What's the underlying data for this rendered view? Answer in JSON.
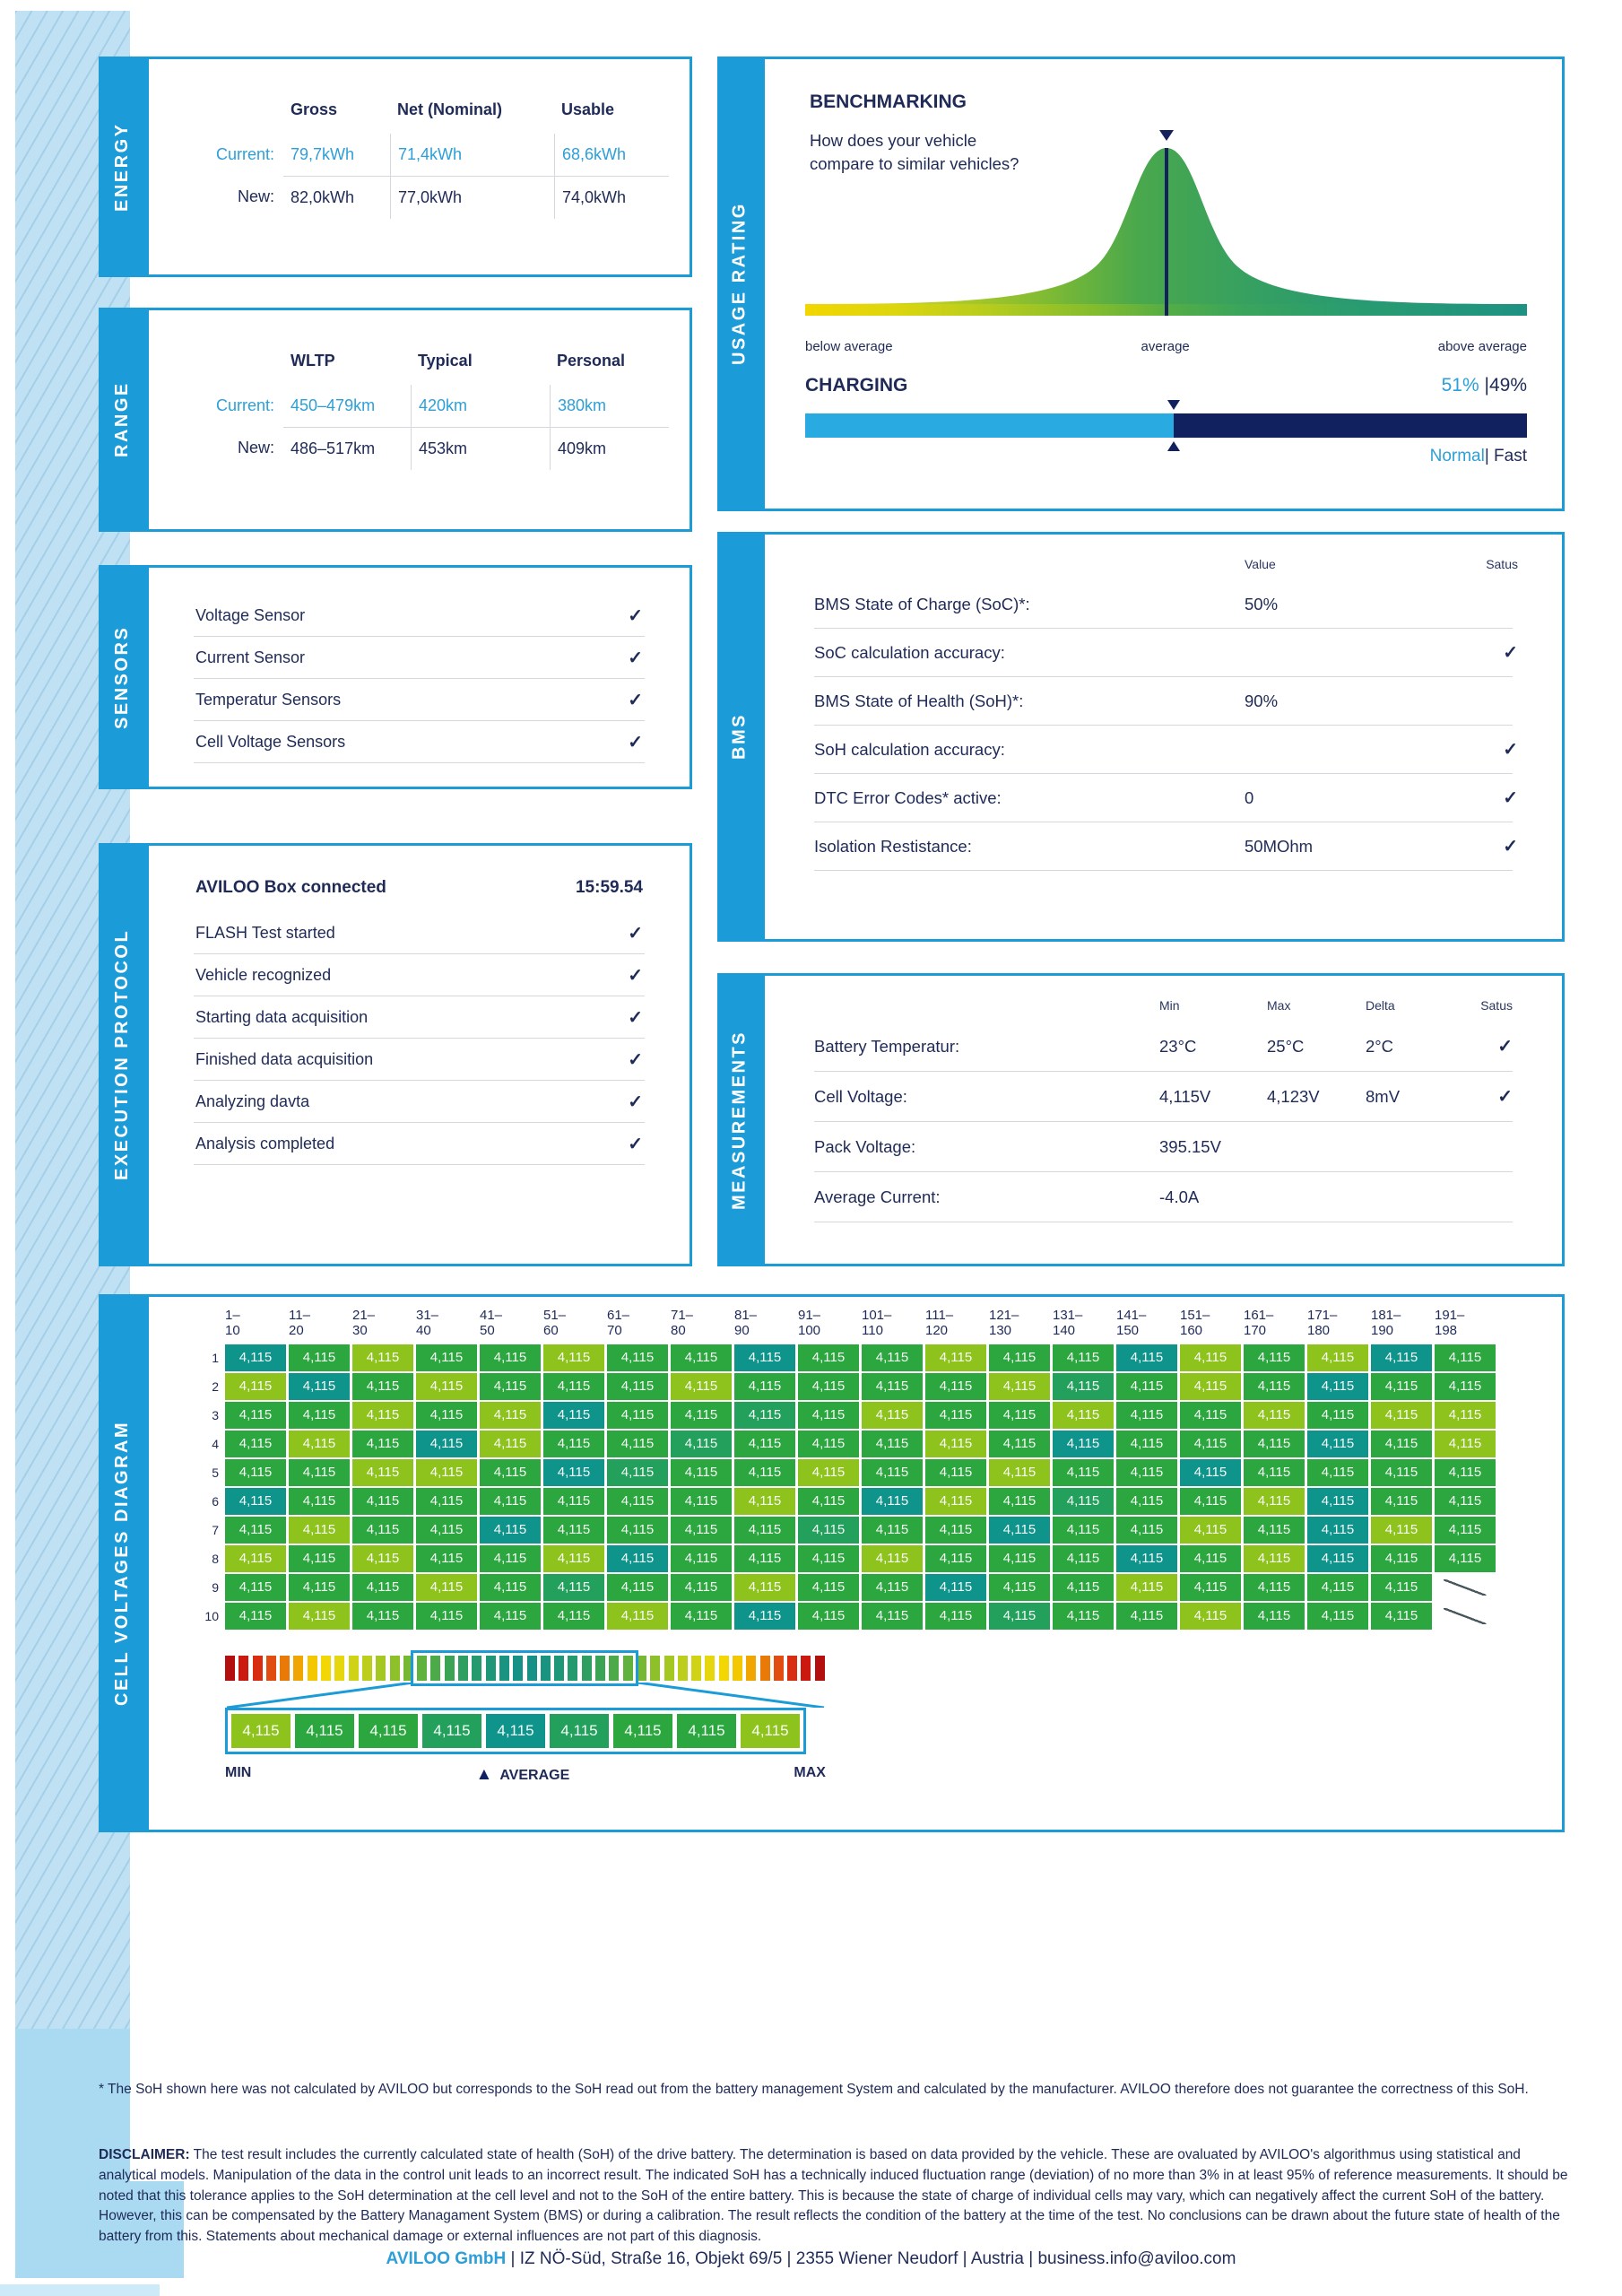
{
  "colors": {
    "accent": "#1b9bd8",
    "navy": "#1f2a57",
    "blue_text": "#2d9fd8",
    "bar_light": "#29abe2",
    "bar_dark": "#11205f",
    "t": "#0f948b",
    "s": "#23a15c",
    "g": "#2ca63f",
    "y": "#8ec31e"
  },
  "energy": {
    "tab": "ENERGY",
    "columns": [
      "Gross",
      "Net (Nominal)",
      "Usable"
    ],
    "rows": [
      {
        "label": "Current:",
        "values": [
          "79,7kWh",
          "71,4kWh",
          "68,6kWh"
        ],
        "accent": true
      },
      {
        "label": "New:",
        "values": [
          "82,0kWh",
          "77,0kWh",
          "74,0kWh"
        ],
        "accent": false
      }
    ]
  },
  "range": {
    "tab": "RANGE",
    "columns": [
      "WLTP",
      "Typical",
      "Personal"
    ],
    "rows": [
      {
        "label": "Current:",
        "values": [
          "450–479km",
          "420km",
          "380km"
        ],
        "accent": true
      },
      {
        "label": "New:",
        "values": [
          "486–517km",
          "453km",
          "409km"
        ],
        "accent": false
      }
    ]
  },
  "sensors": {
    "tab": "SENSORS",
    "items": [
      "Voltage Sensor",
      "Current Sensor",
      "Temperatur Sensors",
      "Cell Voltage Sensors"
    ]
  },
  "execution": {
    "tab": "EXECUTION PROTOCOL",
    "title": "AVILOO Box connected",
    "time": "15:59.54",
    "steps": [
      "FLASH Test started",
      "Vehicle recognized",
      "Starting data acquisition",
      "Finished data acquisition",
      "Analyzing davta",
      "Analysis completed"
    ]
  },
  "usage_rating": {
    "tab": "USAGE RATING",
    "benchmarking_title": "BENCHMARKING",
    "question": "How does your vehicle compare to similar vehicles?",
    "axis_labels": [
      "below average",
      "average",
      "above average"
    ],
    "charging": {
      "title": "CHARGING",
      "left_pct": "51%",
      "right_pct": "|49%",
      "split": 51,
      "normal": "Normal",
      "fast": "| Fast"
    }
  },
  "bms": {
    "tab": "BMS",
    "headers": [
      "Value",
      "Satus"
    ],
    "rows": [
      {
        "label": "BMS State of Charge (SoC)*:",
        "value": "50%",
        "check": false
      },
      {
        "label": "SoC calculation accuracy:",
        "value": "",
        "check": true
      },
      {
        "label": "BMS State of Health (SoH)*:",
        "value": "90%",
        "check": false
      },
      {
        "label": "SoH calculation accuracy:",
        "value": "",
        "check": true
      },
      {
        "label": "DTC Error Codes* active:",
        "value": "0",
        "check": true
      },
      {
        "label": "Isolation Restistance:",
        "value": "50MOhm",
        "check": true
      }
    ]
  },
  "measurements": {
    "tab": "MEASUREMENTS",
    "headers": [
      "Min",
      "Max",
      "Delta",
      "Satus"
    ],
    "rows": [
      {
        "label": "Battery Temperatur:",
        "values": [
          "23°C",
          "25°C",
          "2°C"
        ],
        "check": true
      },
      {
        "label": "Cell Voltage:",
        "values": [
          "4,115V",
          "4,123V",
          "8mV"
        ],
        "check": true
      },
      {
        "label": "Pack Voltage:",
        "values": [
          "395.15V",
          "",
          ""
        ],
        "check": false
      },
      {
        "label": "Average Current:",
        "values": [
          "-4.0A",
          "",
          ""
        ],
        "check": false
      }
    ]
  },
  "cell_voltages": {
    "tab": "CELL VOLTAGES DIAGRAM",
    "cell_value": "4,115",
    "columns": [
      "1–10",
      "11–20",
      "21–30",
      "31–40",
      "41–50",
      "51–60",
      "61–70",
      "71–80",
      "81–90",
      "91–100",
      "101–110",
      "111–120",
      "121–130",
      "131–140",
      "141–150",
      "151–160",
      "161–170",
      "171–180",
      "181–190",
      "191–198"
    ],
    "matrix": [
      "tgyggyggtggyggtygytg",
      "ytgygggyggggysgygtgg",
      "ggygytggsgyggyggygyy",
      "gygtyggsgggygtgggtgy",
      "ggyygtsggyggyggtgggg",
      "tgggggggygtygsggytgg",
      "gyggtggggsggtggygtyg",
      "ygyggytgggygggtgytgg",
      "gggygsggyggtggygggg/",
      "gyggggygtgggsggyggg/"
    ],
    "strip_half": [
      "#b30f0f",
      "#cc1910",
      "#d92d12",
      "#e14d10",
      "#ea7a08",
      "#f0a500",
      "#f4c800",
      "#f2d705",
      "#e5d60e",
      "#d0d215",
      "#bccd1b",
      "#a5c721",
      "#8ec02a",
      "#77b833",
      "#60b13d",
      "#4caa48",
      "#3ba454",
      "#2e9f61",
      "#259a6e",
      "#1e9678",
      "#1a9380",
      "#179185"
    ],
    "magnified_colors": "yggstsggy",
    "labels": {
      "min": "MIN",
      "average": "AVERAGE",
      "max": "MAX"
    }
  },
  "footnote": "* The SoH shown here was not calculated by AVILOO but corresponds to the SoH read out from the battery management System and calculated by the manufacturer. AVILOO therefore does not guarantee the correctness of this SoH.",
  "disclaimer_label": "DISCLAIMER:",
  "disclaimer_text": " The test result includes the currently calculated state of health (SoH) of the drive battery. The determination is based on data provided by the vehicle. These are ovaluated by AVILOO's algorithmus using statistical and analytical models. Manipulation of the data in the control unit leads to an incorrect result. The indicated SoH has a technically induced fluctuation range (deviation) of no more than 3% in at least 95% of reference measurements. It should be noted that this tolerance applies to the SoH determination at the cell level and not to the SoH of the entire battery. This is because the state of charge of individual cells may vary, which can negatively affect the current SoH of the battery. However, this can be compensated by the Battery Managament System (BMS) or during a calibration. The result reflects the condition of the battery at the time of the test. No conclusions can be drawn about the future state of health of the battery from this. Statements about mechanical damage or external influences are not part of this diagnosis.",
  "footer": {
    "company": "AVILOO GmbH",
    "rest": " | IZ NÖ-Süd, Straße 16, Objekt 69/5 | 2355 Wiener Neudorf | Austria | business.info@aviloo.com"
  }
}
